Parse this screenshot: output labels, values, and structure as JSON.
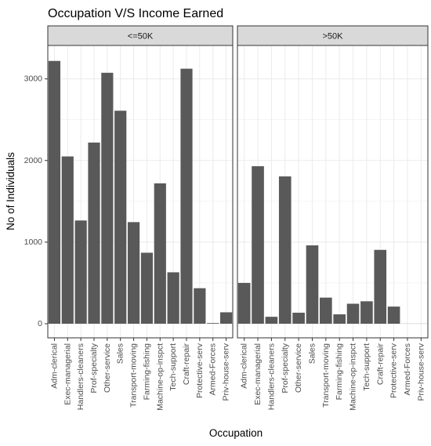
{
  "chart_data": {
    "type": "bar",
    "title": "Occupation V/S Income Earned",
    "xlabel": "Occupation",
    "ylabel": "No of Individuals",
    "ylim": [
      0,
      3400
    ],
    "yticks": [
      0,
      1000,
      2000,
      3000
    ],
    "grid": true,
    "categories": [
      "Adm-clerical",
      "Exec-managerial",
      "Handlers-cleaners",
      "Prof-specialty",
      "Other-service",
      "Sales",
      "Transport-moving",
      "Farming-fishing",
      "Machine-op-inspct",
      "Tech-support",
      "Craft-repair",
      "Protective-serv",
      "Armed-Forces",
      "Priv-house-serv"
    ],
    "facets": [
      {
        "name": "<=50K",
        "values": [
          3220,
          2050,
          1265,
          2220,
          3075,
          2610,
          1245,
          870,
          1720,
          630,
          3125,
          435,
          8,
          140
        ]
      },
      {
        "name": ">50K",
        "values": [
          500,
          1930,
          85,
          1805,
          135,
          960,
          320,
          115,
          245,
          275,
          905,
          210,
          1,
          1
        ]
      }
    ],
    "colors": {
      "bar": "#595959",
      "strip_fill": "#d9d9d9",
      "strip_border": "#333333",
      "grid": "#ebebeb",
      "panel_border": "#333333"
    }
  }
}
